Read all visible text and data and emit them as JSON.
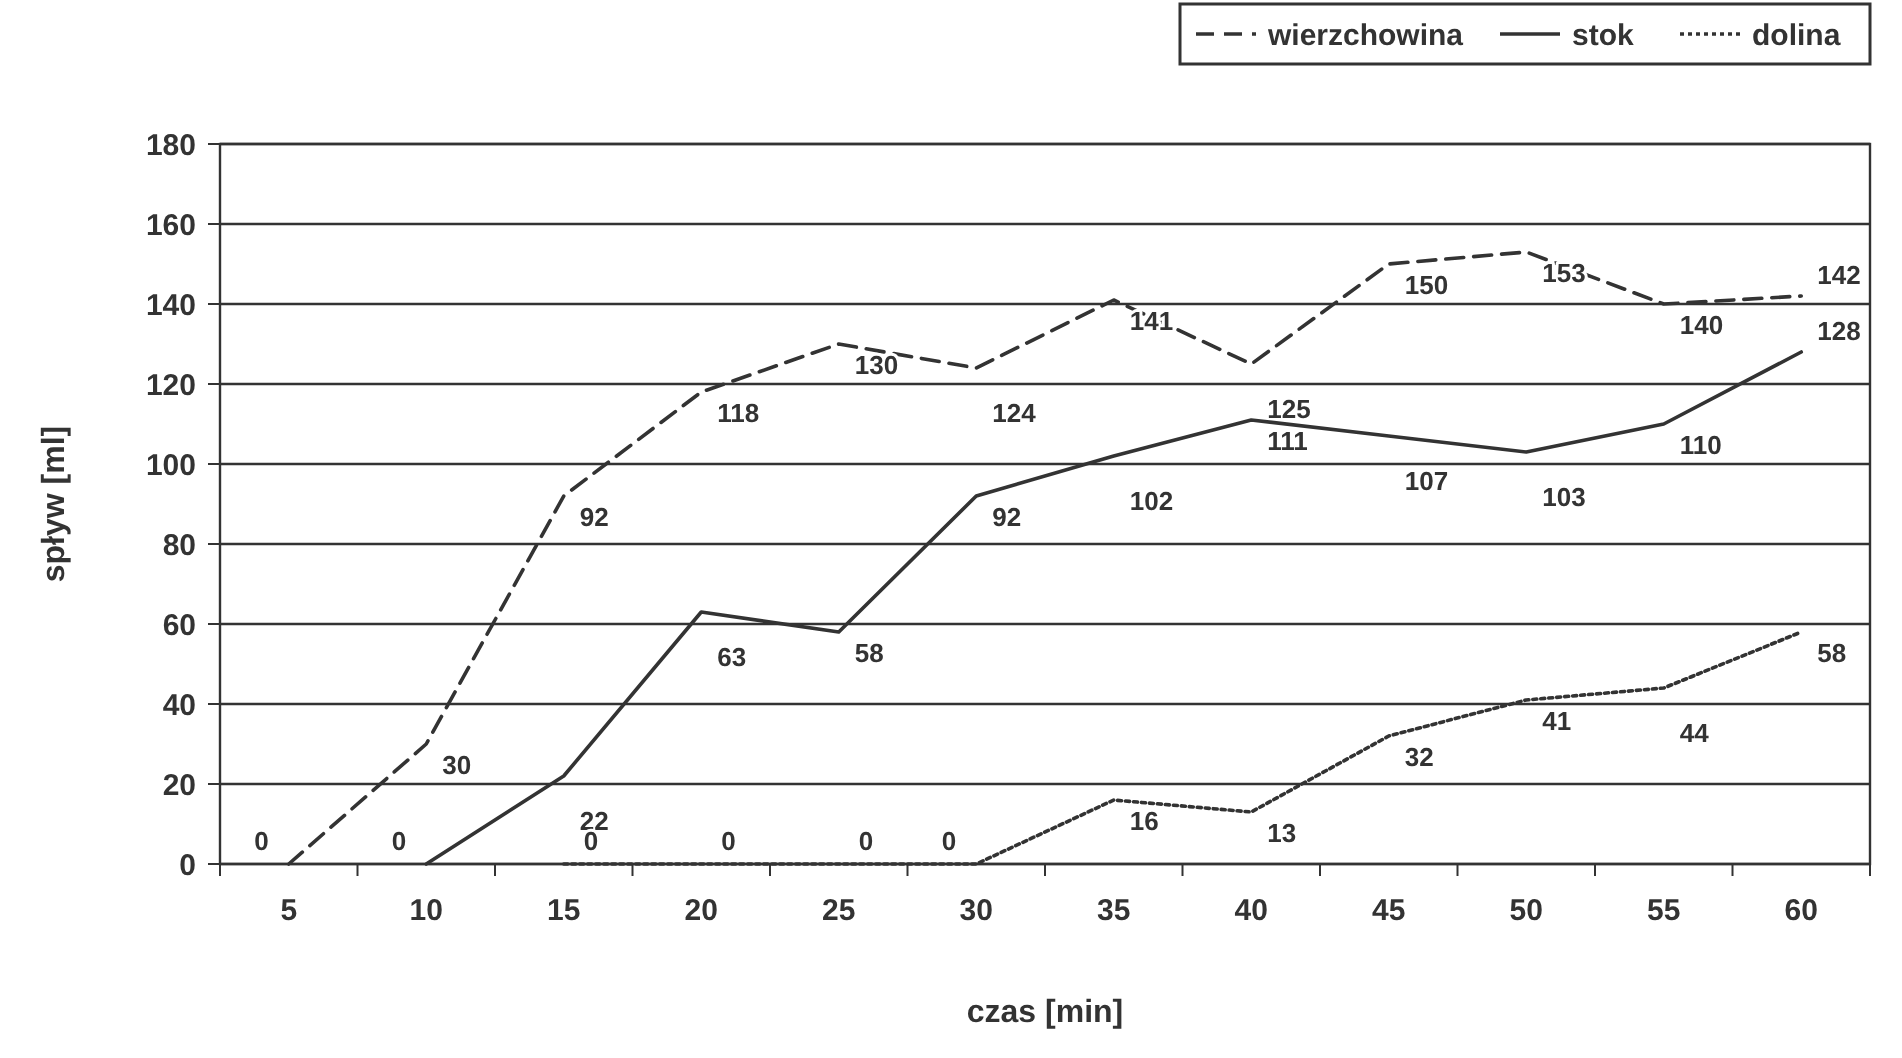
{
  "chart_data": {
    "type": "line",
    "xlabel": "czas [min]",
    "ylabel": "spływ [ml]",
    "categories": [
      "5",
      "10",
      "15",
      "20",
      "25",
      "30",
      "35",
      "40",
      "45",
      "50",
      "55",
      "60"
    ],
    "series": [
      {
        "name": "wierzchowina",
        "color": "#333333",
        "line_style": "dashed",
        "values": [
          0,
          30,
          92,
          118,
          130,
          124,
          141,
          125,
          150,
          153,
          140,
          142
        ]
      },
      {
        "name": "stok",
        "color": "#333333",
        "line_style": "solid",
        "values": [
          null,
          0,
          22,
          63,
          58,
          92,
          102,
          111,
          107,
          103,
          110,
          128
        ]
      },
      {
        "name": "dolina",
        "color": "#333333",
        "line_style": "dotted",
        "values": [
          null,
          null,
          0,
          0,
          0,
          0,
          16,
          13,
          32,
          41,
          44,
          58
        ]
      }
    ],
    "ylim": [
      0,
      180
    ],
    "yticks": [
      0,
      20,
      40,
      60,
      80,
      100,
      120,
      140,
      160,
      180
    ],
    "grid": "y",
    "legend": "top right",
    "data_labels": true,
    "marker": "none"
  }
}
